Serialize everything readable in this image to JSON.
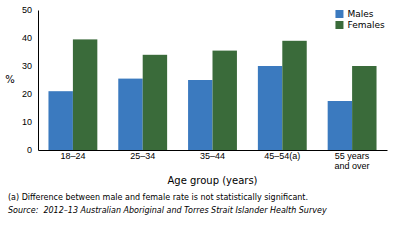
{
  "chart_data": {
    "type": "bar",
    "categories": [
      "18–24",
      "25–34",
      "35–44",
      "45–54(a)",
      "55 years\nand over"
    ],
    "series": [
      {
        "name": "Males",
        "color": "#3B7ABF",
        "values": [
          21,
          25.5,
          25,
          30,
          17.5
        ]
      },
      {
        "name": "Females",
        "color": "#3A6B3A",
        "values": [
          39.5,
          34,
          35.5,
          39,
          30
        ]
      }
    ],
    "xlabel": "Age group (years)",
    "ylabel": "%",
    "ylim": [
      0,
      50
    ],
    "yticks": [
      0,
      10,
      20,
      30,
      40,
      50
    ],
    "grid": false,
    "legend": "top-right",
    "annotations": [
      "(a) Difference between male and female rate is not statistically significant.",
      "Source:  2012–13 Australian Aboriginal and Torres Strait Islander Health Survey"
    ]
  }
}
